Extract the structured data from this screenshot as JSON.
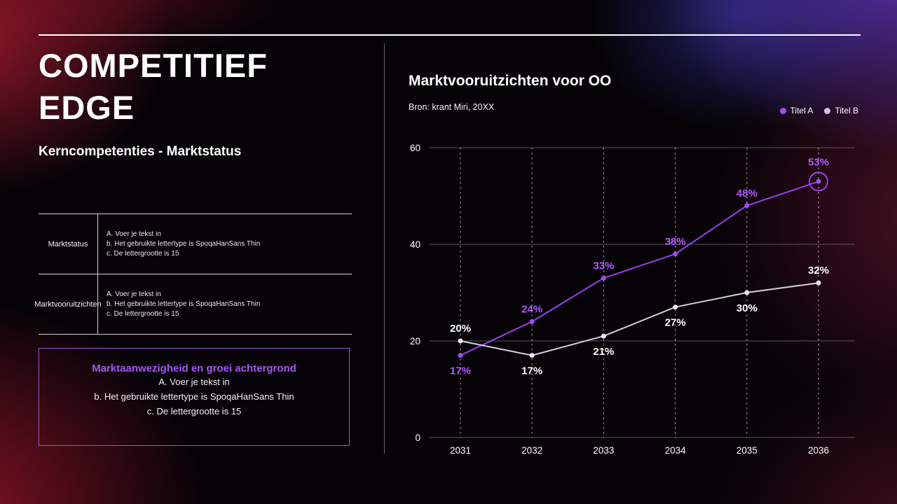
{
  "slide": {
    "title_line1": "COMPETITIEF",
    "title_line2": "EDGE",
    "subtitle": "Kerncompetenties - Marktstatus"
  },
  "table": {
    "rows": [
      {
        "label": "Marktstatus",
        "lines": [
          "A. Voer je tekst in",
          "b. Het gebruikte lettertype is SpoqaHanSans Thin",
          "c. De lettergrootte is 15"
        ]
      },
      {
        "label": "Marktvooruitzichten",
        "lines": [
          "A. Voer je tekst in",
          "b. Het gebruikte lettertype is SpoqaHanSans Thin",
          "c. De lettergrootte is 15"
        ]
      }
    ]
  },
  "highlight_box": {
    "title": "Marktaanwezigheid en groei achtergrond",
    "lines": [
      "A. Voer je tekst in",
      "b. Het gebruikte lettertype is SpoqaHanSans Thin",
      "c. De lettergrootte is 15"
    ]
  },
  "chart": {
    "title": "Marktvooruitzichten voor OO",
    "source": "Bron: krant Miri, 20XX",
    "legend": [
      {
        "label": "Titel A",
        "color": "#a24df5"
      },
      {
        "label": "Titel B",
        "color": "#cdc2e8"
      }
    ]
  },
  "chart_data": {
    "type": "line",
    "title": "Marktvooruitzichten voor OO",
    "x": [
      2031,
      2032,
      2033,
      2034,
      2035,
      2036
    ],
    "yticks": [
      0,
      20,
      40,
      60
    ],
    "ylim": [
      0,
      60
    ],
    "grid": "horizontal-solid vertical-dashed",
    "legend_position": "top-right",
    "series": [
      {
        "name": "Titel A",
        "color": "#9b3df0",
        "point_color": "#a24df5",
        "label_color": "#b35cff",
        "values": [
          17,
          24,
          33,
          38,
          48,
          53
        ],
        "labels": [
          "17%",
          "24%",
          "33%",
          "38%",
          "48%",
          "53%"
        ],
        "label_pos": [
          "below",
          "above",
          "above",
          "above",
          "above",
          "above"
        ]
      },
      {
        "name": "Titel B",
        "color": "#d3cede",
        "point_color": "#eae6f2",
        "label_color": "#ffffff",
        "values": [
          20,
          17,
          21,
          27,
          30,
          32
        ],
        "labels": [
          "20%",
          "17%",
          "21%",
          "27%",
          "30%",
          "32%"
        ],
        "label_pos": [
          "above",
          "below",
          "below",
          "below",
          "below",
          "above"
        ]
      }
    ],
    "highlight": {
      "series": "Titel A",
      "index": 5
    }
  },
  "colors": {
    "accent_purple": "#9d4edd",
    "line_titel_a": "#9b3df0",
    "line_titel_b": "#d3cede",
    "background_glow_red": "#b11c34",
    "background_glow_purple": "#6c3acd"
  }
}
